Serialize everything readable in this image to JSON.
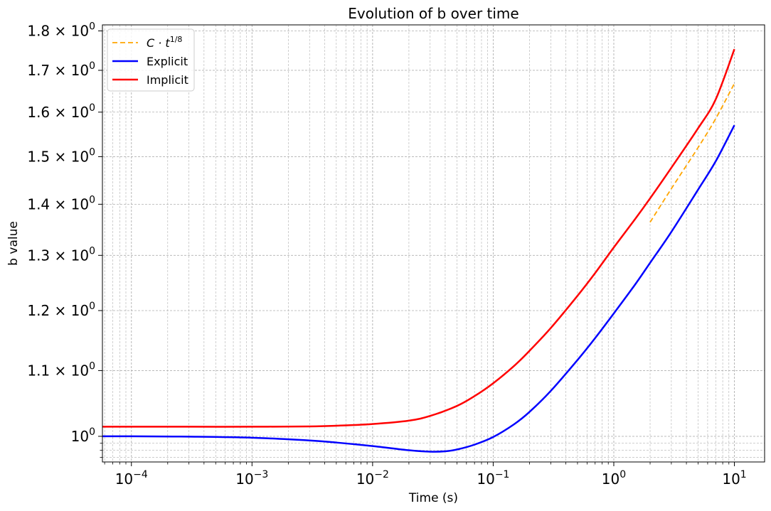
{
  "chart_data": {
    "type": "line",
    "title": "Evolution of b over time",
    "xlabel": "Time (s)",
    "ylabel": "b value",
    "xscale": "log",
    "yscale": "log",
    "xlim": [
      5.75e-05,
      17.8
    ],
    "ylim": [
      0.9635,
      1.8158
    ],
    "grid": "on (major and minor, dashed)",
    "legend_position": "top-left",
    "x_ticks": [
      {
        "value": 0.0001,
        "mantissa": "10",
        "exp": "−4"
      },
      {
        "value": 0.001,
        "mantissa": "10",
        "exp": "−3"
      },
      {
        "value": 0.01,
        "mantissa": "10",
        "exp": "−2"
      },
      {
        "value": 0.1,
        "mantissa": "10",
        "exp": "−1"
      },
      {
        "value": 1,
        "mantissa": "10",
        "exp": "0"
      },
      {
        "value": 10,
        "mantissa": "10",
        "exp": "1"
      }
    ],
    "y_ticks": [
      {
        "value": 1.0,
        "mantissa": "",
        "exp": "0"
      },
      {
        "value": 1.1,
        "mantissa": "1.1 × ",
        "exp": "0"
      },
      {
        "value": 1.2,
        "mantissa": "1.2 × ",
        "exp": "0"
      },
      {
        "value": 1.3,
        "mantissa": "1.3 × ",
        "exp": "0"
      },
      {
        "value": 1.4,
        "mantissa": "1.4 × ",
        "exp": "0"
      },
      {
        "value": 1.5,
        "mantissa": "1.5 × ",
        "exp": "0"
      },
      {
        "value": 1.6,
        "mantissa": "1.6 × ",
        "exp": "0"
      },
      {
        "value": 1.7,
        "mantissa": "1.7 × ",
        "exp": "0"
      },
      {
        "value": 1.8,
        "mantissa": "1.8 × ",
        "exp": "0"
      }
    ],
    "series": [
      {
        "name": "C · t^(1/8)",
        "legend_base": "C · t",
        "legend_exp": "1/8",
        "color": "#ffa500",
        "style": "dashed",
        "x": [
          2,
          3,
          5,
          7,
          10
        ],
        "y": [
          1.364,
          1.432,
          1.52,
          1.585,
          1.668
        ]
      },
      {
        "name": "Explicit",
        "color": "#0000ff",
        "style": "solid",
        "x": [
          5.75e-05,
          0.0001,
          0.0003,
          0.001,
          0.003,
          0.005,
          0.01,
          0.02,
          0.03,
          0.04,
          0.05,
          0.07,
          0.1,
          0.15,
          0.2,
          0.3,
          0.5,
          0.7,
          1,
          1.5,
          2,
          3,
          5,
          7,
          10
        ],
        "y": [
          1.0,
          1.0,
          0.9995,
          0.998,
          0.994,
          0.991,
          0.986,
          0.98,
          0.978,
          0.9785,
          0.981,
          0.988,
          0.999,
          1.018,
          1.036,
          1.068,
          1.117,
          1.153,
          1.195,
          1.246,
          1.286,
          1.345,
          1.43,
          1.49,
          1.57
        ]
      },
      {
        "name": "Implicit",
        "color": "#ff0000",
        "style": "solid",
        "x": [
          5.75e-05,
          0.0001,
          0.0003,
          0.001,
          0.003,
          0.005,
          0.01,
          0.02,
          0.03,
          0.05,
          0.07,
          0.1,
          0.15,
          0.2,
          0.3,
          0.5,
          0.7,
          1,
          1.5,
          2,
          3,
          5,
          7,
          10
        ],
        "y": [
          1.014,
          1.014,
          1.014,
          1.014,
          1.0145,
          1.0155,
          1.018,
          1.023,
          1.03,
          1.045,
          1.06,
          1.08,
          1.108,
          1.132,
          1.17,
          1.226,
          1.267,
          1.315,
          1.37,
          1.412,
          1.476,
          1.563,
          1.63,
          1.753
        ]
      }
    ]
  }
}
